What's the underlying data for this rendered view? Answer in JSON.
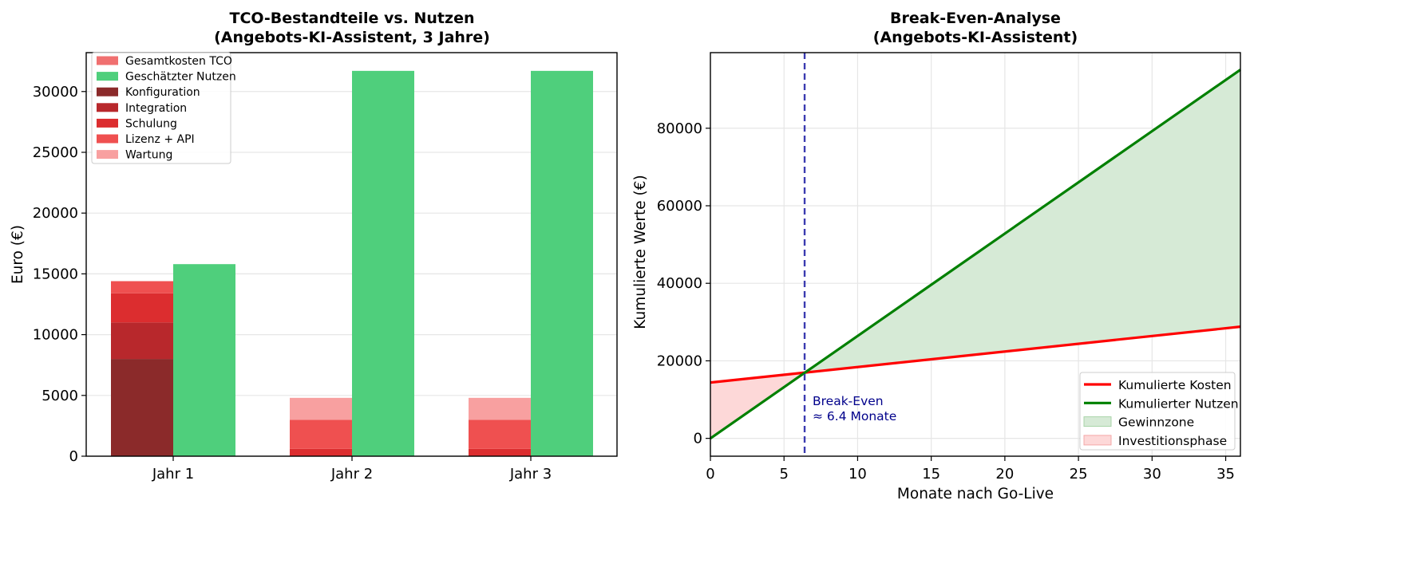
{
  "chart_data": [
    {
      "type": "bar",
      "title_line1": "TCO-Bestandteile vs. Nutzen",
      "title_line2": "(Angebots-KI-Assistent, 3 Jahre)",
      "ylabel": "Euro (€)",
      "xlabel": "",
      "categories": [
        "Jahr 1",
        "Jahr 2",
        "Jahr 3"
      ],
      "ylim": [
        0,
        33200
      ],
      "yticks": [
        0,
        5000,
        10000,
        15000,
        20000,
        25000,
        30000
      ],
      "grid": true,
      "legend_position": "top-left",
      "total_cost": {
        "name": "Gesamtkosten TCO",
        "color": "#f07070",
        "values": [
          14400,
          4800,
          4800
        ]
      },
      "benefit": {
        "name": "Geschätzter Nutzen",
        "color": "#4fcf7c",
        "values": [
          15800,
          31700,
          31700
        ]
      },
      "cost_components": [
        {
          "name": "Konfiguration",
          "color": "#8b2a2a",
          "values": [
            8000,
            0,
            0
          ]
        },
        {
          "name": "Integration",
          "color": "#b8282c",
          "values": [
            3000,
            0,
            0
          ]
        },
        {
          "name": "Schulung",
          "color": "#dc2d2f",
          "values": [
            2400,
            600,
            600
          ]
        },
        {
          "name": "Lizenz + API",
          "color": "#ef5050",
          "values": [
            1000,
            2400,
            2400
          ]
        },
        {
          "name": "Wartung",
          "color": "#f8a0a0",
          "values": [
            0,
            1800,
            1800
          ]
        }
      ]
    },
    {
      "type": "line",
      "title_line1": "Break-Even-Analyse",
      "title_line2": "(Angebots-KI-Assistent)",
      "xlabel": "Monate nach Go-Live",
      "ylabel": "Kumulierte Werte (€)",
      "xlim": [
        0,
        36
      ],
      "ylim": [
        -4600,
        99500
      ],
      "xticks": [
        0,
        5,
        10,
        15,
        20,
        25,
        30,
        35
      ],
      "yticks": [
        0,
        20000,
        40000,
        60000,
        80000
      ],
      "grid": true,
      "legend_position": "bottom-right",
      "series": [
        {
          "name": "Kumulierte Kosten",
          "color": "#ff0000",
          "x": [
            0,
            36
          ],
          "y": [
            14400,
            28800
          ]
        },
        {
          "name": "Kumulierter Nutzen",
          "color": "#008000",
          "x": [
            0,
            36
          ],
          "y": [
            0,
            95100
          ]
        }
      ],
      "fills": [
        {
          "name": "Gewinnzone",
          "color": "#d6ead6"
        },
        {
          "name": "Investitionsphase",
          "color": "#fdd8d8"
        }
      ],
      "break_even_month": 6.4,
      "annotation_line1": "Break-Even",
      "annotation_line2": "≈ 6.4 Monate"
    }
  ]
}
